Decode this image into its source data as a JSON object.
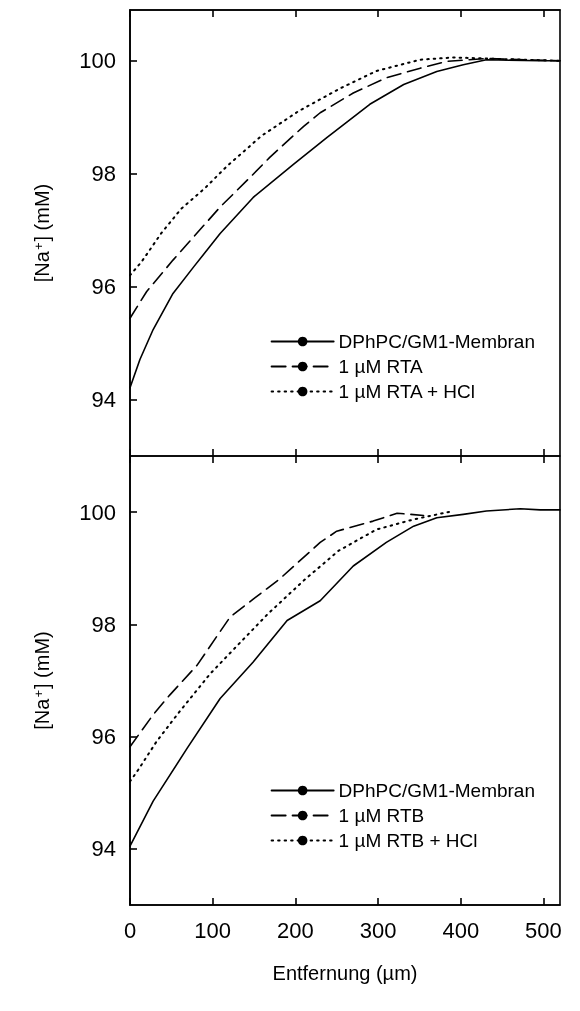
{
  "chart_data": [
    {
      "type": "line",
      "ylabel": "[Na$^{+}$] (mM)",
      "xlim": [
        0,
        520
      ],
      "xticks": [
        0,
        100,
        200,
        300,
        400,
        500
      ],
      "ylim": [
        93,
        100.9
      ],
      "yticks": [
        94,
        96,
        98,
        100
      ],
      "tick_labels": "y",
      "legend": "bottom right",
      "marker": "none",
      "grid": false,
      "series": [
        {
          "name": "DPhPC/GM1-Membran",
          "color": "#000000",
          "line_style": "solid",
          "x": [
            0,
            12,
            28,
            52,
            77,
            109,
            149,
            198,
            238,
            290,
            331,
            371,
            403,
            431,
            496,
            520
          ],
          "values": [
            94.21,
            94.71,
            95.24,
            95.88,
            96.35,
            96.94,
            97.58,
            98.17,
            98.64,
            99.23,
            99.58,
            99.81,
            99.93,
            100.02,
            100.0,
            100.0
          ]
        },
        {
          "name": "1 µM RTA",
          "color": "#000000",
          "line_style": "dashed",
          "x": [
            0,
            20,
            52,
            109,
            149,
            169,
            210,
            230,
            270,
            310,
            351,
            383,
            431,
            520
          ],
          "values": [
            95.44,
            95.91,
            96.47,
            97.41,
            97.99,
            98.29,
            98.84,
            99.08,
            99.43,
            99.7,
            99.87,
            99.99,
            100.04,
            100.0
          ]
        },
        {
          "name": "1 µM RTA + HCl",
          "color": "#000000",
          "line_style": "dotted",
          "x": [
            0,
            14,
            38,
            62,
            91,
            117,
            159,
            204,
            254,
            298,
            351,
            391,
            431,
            520
          ],
          "values": [
            96.2,
            96.44,
            96.95,
            97.38,
            97.75,
            98.13,
            98.67,
            99.11,
            99.51,
            99.82,
            100.02,
            100.06,
            100.04,
            100.0
          ]
        }
      ]
    },
    {
      "type": "line",
      "ylabel": "[Na$^{+}$] (mM)",
      "xlabel": "Entfernung (µm)",
      "xlim": [
        0,
        520
      ],
      "xticks": [
        0,
        100,
        200,
        300,
        400,
        500
      ],
      "ylim": [
        93,
        101
      ],
      "yticks": [
        94,
        96,
        98,
        100
      ],
      "legend": "bottom right",
      "marker": "none",
      "grid": false,
      "series": [
        {
          "name": "DPhPC/GM1-Membran",
          "color": "#000000",
          "line_style": "solid",
          "x": [
            0,
            28,
            69,
            109,
            149,
            190,
            230,
            270,
            310,
            343,
            371,
            403,
            431,
            472,
            496,
            520
          ],
          "values": [
            94.05,
            94.85,
            95.79,
            96.68,
            97.33,
            98.07,
            98.42,
            99.04,
            99.46,
            99.75,
            99.9,
            99.96,
            100.02,
            100.06,
            100.04,
            100.04
          ]
        },
        {
          "name": "1 µM RTB",
          "color": "#000000",
          "line_style": "dashed",
          "x": [
            0,
            28,
            48,
            81,
            121,
            149,
            181,
            230,
            250,
            294,
            323,
            355
          ],
          "values": [
            95.82,
            96.39,
            96.74,
            97.27,
            98.13,
            98.45,
            98.81,
            99.46,
            99.66,
            99.84,
            99.98,
            99.94
          ]
        },
        {
          "name": "1 µM RTB + HCl",
          "color": "#000000",
          "line_style": "dotted",
          "x": [
            0,
            10,
            32,
            58,
            97,
            125,
            167,
            210,
            252,
            298,
            343,
            391
          ],
          "values": [
            95.2,
            95.41,
            95.91,
            96.41,
            97.12,
            97.55,
            98.19,
            98.78,
            99.31,
            99.69,
            99.87,
            100.02
          ]
        }
      ]
    }
  ]
}
